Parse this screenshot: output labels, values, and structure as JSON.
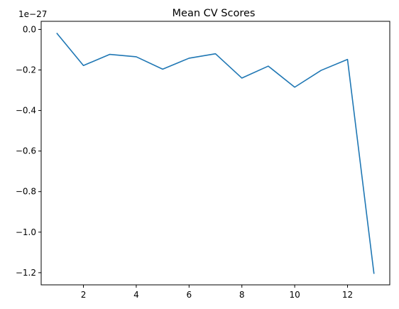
{
  "chart_data": {
    "type": "line",
    "title": "Mean CV Scores",
    "xlabel": "",
    "ylabel": "",
    "y_offset_label": "1e−27",
    "xlim": [
      0.4,
      13.6
    ],
    "ylim": [
      -1.26,
      0.04
    ],
    "x_ticks": [
      2,
      4,
      6,
      8,
      10,
      12
    ],
    "y_ticks": [
      0.0,
      -0.2,
      -0.4,
      -0.6,
      -0.8,
      -1.0,
      -1.2
    ],
    "x_tick_labels": [
      "2",
      "4",
      "6",
      "8",
      "10",
      "12"
    ],
    "y_tick_labels": [
      "0.0",
      "−0.2",
      "−0.4",
      "−0.6",
      "−0.8",
      "−1.0",
      "−1.2"
    ],
    "grid": false,
    "series": [
      {
        "color": "#1f77b4",
        "x": [
          1,
          2,
          3,
          4,
          5,
          6,
          7,
          8,
          9,
          10,
          11,
          12,
          13
        ],
        "y": [
          -0.02,
          -0.178,
          -0.123,
          -0.135,
          -0.196,
          -0.142,
          -0.12,
          -0.24,
          -0.181,
          -0.285,
          -0.202,
          -0.148,
          -1.203
        ]
      }
    ]
  }
}
